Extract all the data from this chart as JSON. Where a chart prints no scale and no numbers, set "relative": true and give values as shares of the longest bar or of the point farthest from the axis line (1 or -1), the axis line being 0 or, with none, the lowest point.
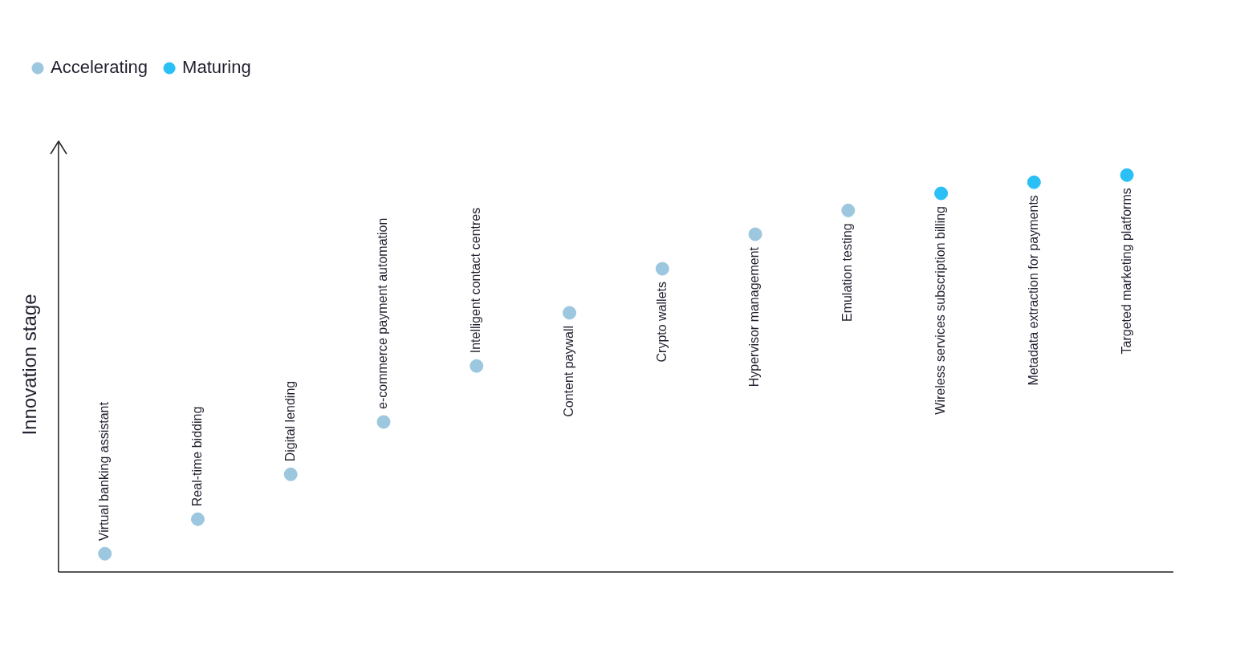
{
  "chart_data": {
    "type": "scatter",
    "ylabel": "Innovation stage",
    "relative": true,
    "grid": false,
    "legend": "top left",
    "marker": "circle",
    "categories": [
      "Virtual banking assistant",
      "Real-time bidding",
      "Digital lending",
      "e-commerce payment automation",
      "Intelligent contact centres",
      "Content paywall",
      "Crypto wallets",
      "Hypervisor management",
      "Emulation testing",
      "Wireless services subscription billing",
      "Metadata extraction for payments",
      "Targeted marketing platforms"
    ],
    "series": [
      {
        "name": "Accelerating",
        "color": "#9cc7de",
        "values": [
          0.046,
          0.133,
          0.246,
          0.378,
          0.519,
          0.653,
          0.764,
          0.851,
          0.911,
          null,
          null,
          null
        ]
      },
      {
        "name": "Maturing",
        "color": "#2bc0f5",
        "values": [
          null,
          null,
          null,
          null,
          null,
          null,
          null,
          null,
          null,
          0.954,
          0.982,
          1
        ]
      }
    ]
  }
}
